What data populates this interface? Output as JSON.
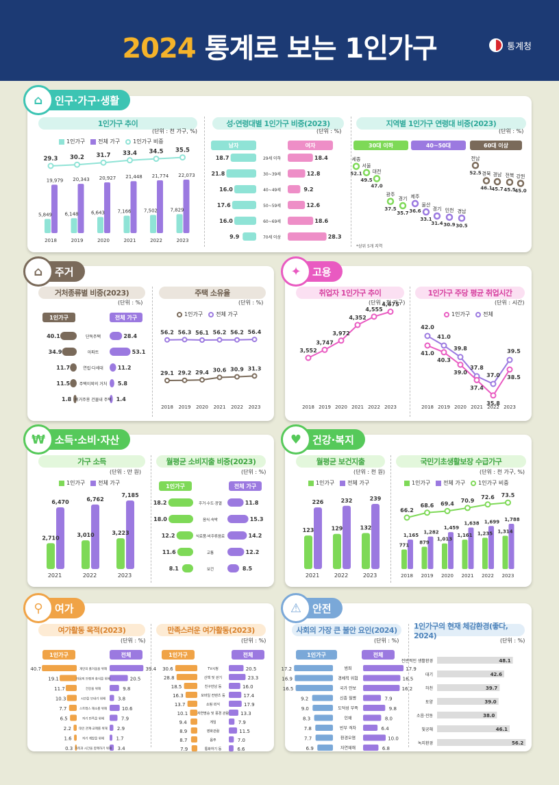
{
  "header": {
    "year": "2024",
    "title": "통계로 보는 1인가구",
    "org": "통계청"
  },
  "sections": {
    "population": "인구·가구·생활",
    "housing": "주거",
    "employment": "고용",
    "income": "소득·소비·자산",
    "health": "건강·복지",
    "leisure": "여가",
    "safety": "안전"
  },
  "colors": {
    "green": "#7ed957",
    "purple": "#9b79e0",
    "mint": "#8fe3d6",
    "orange": "#f0a346",
    "pink": "#e95ac1",
    "brown": "#7a6a5a",
    "navy": "#1c3a74",
    "blue": "#7aa8d8"
  },
  "labels": {
    "one_person": "1인가구",
    "total": "전체 가구",
    "total_short": "전체",
    "ratio": "1인가구 비중",
    "male": "남자",
    "female": "여자",
    "age30": "30대 이하",
    "age4050": "40~50대",
    "age60": "60대 이상",
    "top5_note": "*상위 5개 지역",
    "unit_k_pct": "(단위 : 천 가구, %)",
    "unit_pct": "(단위 : %)",
    "unit_k": "(단위 : 천 가구)",
    "unit_hours": "(단위 : 시간)",
    "unit_10k_won": "(단위 : 만 원)",
    "unit_1k_won": "(단위 : 천 원)"
  },
  "chart_titles": {
    "c1": "1인가구 추이",
    "c2": "성·연령대별 1인가구 비중(2023)",
    "c3": "지역별 1인가구 연령대 비중(2023)",
    "c4": "거처종류별 비중(2023)",
    "c5": "주택 소유율",
    "c6": "취업자 1인가구 추이",
    "c7": "1인가구 주당 평균 취업시간",
    "c8": "가구 소득",
    "c9": "월평균 소비지출 비중(2023)",
    "c10": "월평균 보건지출",
    "c11": "국민기초생활보장 수급가구",
    "c12": "여가활동 목적(2023)",
    "c13": "만족스러운 여가활동(2023)",
    "c14": "사회의 가장 큰 불안 요인(2024)",
    "c15": "1인가구의 현재 체감환경(좋다, 2024)"
  },
  "chart_data": [
    {
      "id": "households_trend",
      "type": "bar",
      "categories": [
        "2018",
        "2019",
        "2020",
        "2021",
        "2022",
        "2023"
      ],
      "series": [
        {
          "name": "1인가구",
          "values": [
            5849,
            6148,
            6643,
            7166,
            7502,
            7829
          ]
        },
        {
          "name": "전체 가구",
          "values": [
            19979,
            20343,
            20927,
            21448,
            21774,
            22073
          ]
        },
        {
          "name": "1인가구 비중",
          "values": [
            29.3,
            30.2,
            31.7,
            33.4,
            34.5,
            35.5
          ]
        }
      ],
      "labels": {
        "s1": [
          "5,849",
          "6,148",
          "6,643",
          "7,166",
          "7,502",
          "7,829"
        ],
        "s2": [
          "19,979",
          "20,343",
          "20,927",
          "21,448",
          "21,774",
          "22,073"
        ]
      }
    },
    {
      "id": "sex_age",
      "type": "bar",
      "categories": [
        "29세 이하",
        "30~39세",
        "40~49세",
        "50~59세",
        "60~69세",
        "70세 이상"
      ],
      "series": [
        {
          "name": "남자",
          "values": [
            18.7,
            21.8,
            16.0,
            17.6,
            16.0,
            9.9
          ]
        },
        {
          "name": "여자",
          "values": [
            18.4,
            12.8,
            9.2,
            12.6,
            18.6,
            28.3
          ]
        }
      ]
    },
    {
      "id": "region_age",
      "type": "scatter",
      "groups": [
        {
          "name": "30대 이하",
          "points": [
            [
              "세종",
              52.1
            ],
            [
              "서울",
              49.5
            ],
            [
              "대전",
              47.0
            ],
            [
              "광주",
              37.5
            ],
            [
              "경기",
              35.7
            ]
          ]
        },
        {
          "name": "40~50대",
          "points": [
            [
              "제주",
              36.6
            ],
            [
              "울산",
              33.1
            ],
            [
              "경기",
              31.4
            ],
            [
              "인천",
              30.9
            ],
            [
              "경남",
              30.5
            ]
          ]
        },
        {
          "name": "60대 이상",
          "points": [
            [
              "전남",
              52.5
            ],
            [
              "경북",
              46.1
            ],
            [
              "경남",
              45.7
            ],
            [
              "전북",
              45.5
            ],
            [
              "강원",
              45.0
            ]
          ]
        }
      ]
    },
    {
      "id": "dwelling",
      "type": "bar",
      "categories": [
        "단독주택",
        "아파트",
        "연립·다세대",
        "주택이외의 거처",
        "비거주용 건물내 주택"
      ],
      "series": [
        {
          "name": "1인가구",
          "values": [
            40.1,
            34.9,
            11.7,
            11.5,
            1.8
          ]
        },
        {
          "name": "전체 가구",
          "values": [
            28.4,
            53.1,
            11.2,
            5.8,
            1.4
          ]
        }
      ]
    },
    {
      "id": "home_ownership",
      "type": "line",
      "categories": [
        "2018",
        "2019",
        "2020",
        "2021",
        "2022",
        "2023"
      ],
      "series": [
        {
          "name": "1인가구",
          "values": [
            29.1,
            29.2,
            29.4,
            30.6,
            30.9,
            31.3
          ]
        },
        {
          "name": "전체 가구",
          "values": [
            56.2,
            56.3,
            56.1,
            56.2,
            56.2,
            56.4
          ]
        }
      ]
    },
    {
      "id": "employed",
      "type": "line",
      "categories": [
        "2018",
        "2019",
        "2020",
        "2021",
        "2022",
        "2023"
      ],
      "series": [
        {
          "name": "1인가구",
          "values": [
            3552,
            3747,
            3972,
            4352,
            4555,
            4675
          ]
        }
      ],
      "labels": [
        "3,552",
        "3,747",
        "3,972",
        "4,352",
        "4,555",
        "4,675"
      ]
    },
    {
      "id": "work_hours",
      "type": "line",
      "categories": [
        "2018",
        "2019",
        "2020",
        "2021",
        "2022",
        "2023"
      ],
      "series": [
        {
          "name": "1인가구",
          "values": [
            41.0,
            40.3,
            39.0,
            37.4,
            35.8,
            38.5
          ]
        },
        {
          "name": "전체",
          "values": [
            42.0,
            41.0,
            39.8,
            37.8,
            37.0,
            39.5
          ]
        }
      ]
    },
    {
      "id": "income",
      "type": "bar",
      "categories": [
        "2021",
        "2022",
        "2023"
      ],
      "series": [
        {
          "name": "1인가구",
          "values": [
            2710,
            3010,
            3223
          ]
        },
        {
          "name": "전체 가구",
          "values": [
            6470,
            6762,
            7185
          ]
        }
      ],
      "labels": {
        "s1": [
          "2,710",
          "3,010",
          "3,223"
        ],
        "s2": [
          "6,470",
          "6,762",
          "7,185"
        ]
      }
    },
    {
      "id": "consumption",
      "type": "bar",
      "categories": [
        "주거·수도·광열",
        "음식·숙박",
        "식료품·비주류음료",
        "교통",
        "보건"
      ],
      "series": [
        {
          "name": "1인가구",
          "values": [
            18.2,
            18.0,
            12.2,
            11.6,
            8.1
          ]
        },
        {
          "name": "전체 가구",
          "values": [
            11.8,
            15.3,
            14.2,
            12.2,
            8.5
          ]
        }
      ]
    },
    {
      "id": "health_spend",
      "type": "bar",
      "categories": [
        "2021",
        "2022",
        "2023"
      ],
      "series": [
        {
          "name": "1인가구",
          "values": [
            123,
            129,
            132
          ]
        },
        {
          "name": "전체 가구",
          "values": [
            226,
            232,
            239
          ]
        }
      ]
    },
    {
      "id": "welfare",
      "type": "bar",
      "categories": [
        "2018",
        "2019",
        "2020",
        "2021",
        "2022",
        "2023"
      ],
      "series": [
        {
          "name": "1인가구",
          "values": [
            771,
            879,
            1013,
            1161,
            1235,
            1314
          ]
        },
        {
          "name": "전체 가구",
          "values": [
            1165,
            1282,
            1459,
            1638,
            1699,
            1788
          ]
        },
        {
          "name": "1인가구 비중",
          "values": [
            66.2,
            68.6,
            69.4,
            70.9,
            72.6,
            73.5
          ]
        }
      ],
      "labels": {
        "s1": [
          "771",
          "879",
          "1,013",
          "1,161",
          "1,235",
          "1,314"
        ],
        "s2": [
          "1,165",
          "1,282",
          "1,459",
          "1,638",
          "1,699",
          "1,788"
        ]
      }
    },
    {
      "id": "leisure_purpose",
      "type": "bar",
      "categories": [
        "개인의 즐거움을 위해",
        "마음의 안정과 휴식을 위해",
        "건강을 위해",
        "시간을 보내기 위해",
        "스트레스 해소를 위해",
        "자기 만족을 위해",
        "대인 관계·교제를 위해",
        "자기 계발을 위해",
        "가족과 시간을 함께하기 위해"
      ],
      "series": [
        {
          "name": "1인가구",
          "values": [
            40.7,
            19.1,
            11.7,
            10.3,
            7.7,
            6.5,
            2.2,
            1.6,
            0.3
          ]
        },
        {
          "name": "전체",
          "values": [
            39.4,
            20.5,
            9.8,
            3.8,
            10.6,
            7.9,
            2.9,
            1.7,
            3.4
          ]
        }
      ]
    },
    {
      "id": "leisure_satisfy",
      "type": "bar",
      "categories": [
        "TV시청",
        "산책 및 걷기",
        "친구만남 등",
        "모바일 컨텐츠 등",
        "쇼핑·외식",
        "자연명승 및 풍경 관람",
        "게임",
        "영화관람",
        "음주",
        "통화하기 등"
      ],
      "series": [
        {
          "name": "1인가구",
          "values": [
            30.6,
            28.8,
            18.5,
            16.3,
            13.7,
            10.1,
            9.4,
            8.9,
            8.7,
            7.9
          ]
        },
        {
          "name": "전체",
          "values": [
            20.5,
            23.3,
            16.0,
            17.4,
            17.9,
            13.3,
            7.9,
            11.5,
            7.0,
            6.6
          ]
        }
      ]
    },
    {
      "id": "anxiety",
      "type": "bar",
      "categories": [
        "범죄",
        "경제적 위험",
        "국가 안보",
        "신종 질병",
        "도덕성 부족",
        "인재",
        "빈부 격차",
        "환경오염",
        "자연재해"
      ],
      "series": [
        {
          "name": "1인가구",
          "values": [
            17.2,
            16.9,
            16.5,
            9.2,
            9.0,
            8.3,
            7.8,
            7.7,
            6.9
          ]
        },
        {
          "name": "전체",
          "values": [
            17.9,
            16.5,
            16.2,
            7.9,
            9.8,
            8.0,
            6.4,
            10.0,
            6.8
          ]
        }
      ]
    },
    {
      "id": "environment",
      "type": "bar",
      "categories": [
        "전반적인 생활환경",
        "대기",
        "하천",
        "토양",
        "소음·진동",
        "빛공해",
        "녹지환경"
      ],
      "series": [
        {
          "name": "1인가구",
          "values": [
            48.1,
            42.6,
            39.7,
            39.0,
            38.0,
            46.1,
            56.2
          ]
        }
      ]
    }
  ]
}
